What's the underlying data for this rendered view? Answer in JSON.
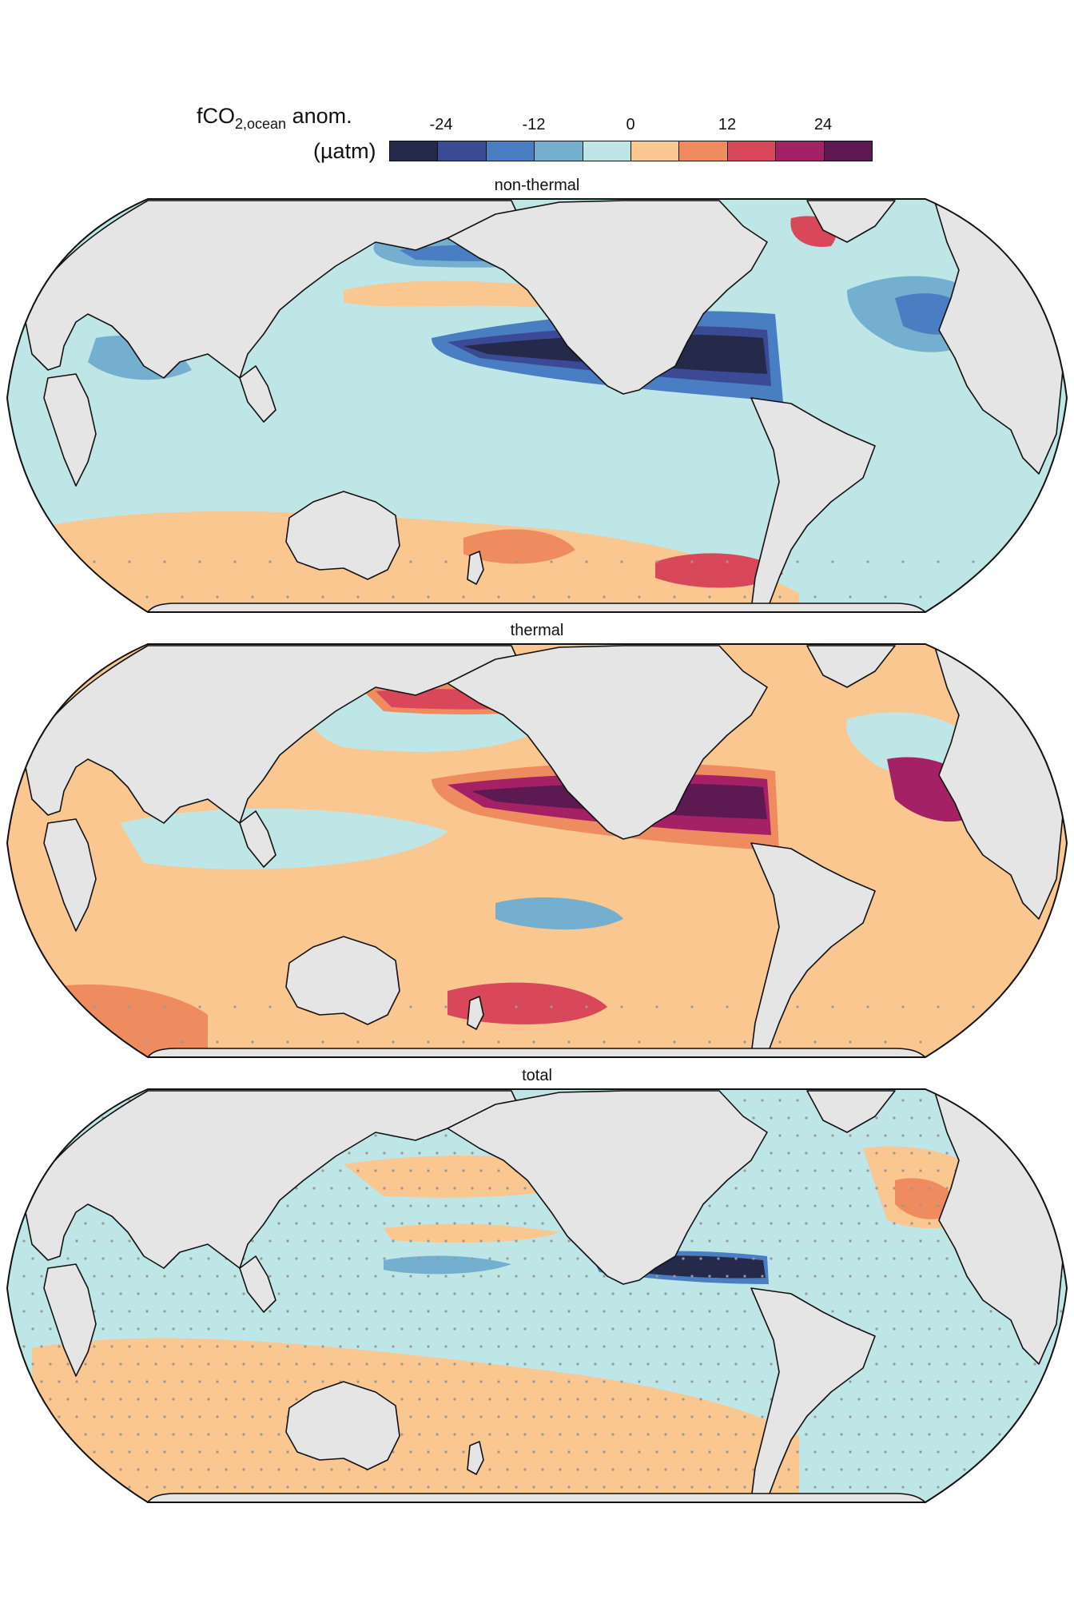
{
  "legend": {
    "title_main": "fCO",
    "title_sub": "2,ocean",
    "title_tail": " anom.",
    "units": "(µatm)",
    "ticks": [
      "-24",
      "-12",
      "0",
      "12",
      "24"
    ],
    "bin_colors": [
      "#262a4a",
      "#3b4a94",
      "#4a7ec2",
      "#74afcf",
      "#bfe6e6",
      "#f9c78f",
      "#ee8c5f",
      "#d9485a",
      "#a52166",
      "#5d1a52"
    ]
  },
  "colors": {
    "land": "#e5e5e5",
    "ocean_neutral_pos": "#f9c78f",
    "ocean_neutral_neg": "#bfe6e6",
    "stipple": "#999999"
  },
  "panels": [
    {
      "title": "non-thermal"
    },
    {
      "title": "thermal"
    },
    {
      "title": "total"
    }
  ]
}
